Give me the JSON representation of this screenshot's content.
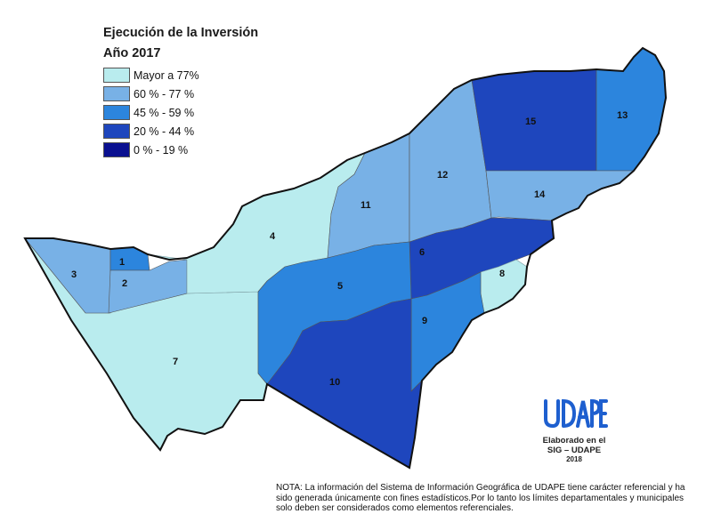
{
  "title_line1": "Ejecución de la Inversión",
  "title_line2": "Año 2017",
  "legend": [
    {
      "label": "Mayor a 77%",
      "color": "#b9ecee"
    },
    {
      "label": "60 % - 77 %",
      "color": "#78b1e6"
    },
    {
      "label": "45 % - 59 %",
      "color": "#2c85dd"
    },
    {
      "label": "20 % - 44 %",
      "color": "#1e46bd"
    },
    {
      "label": "0 % - 19 %",
      "color": "#0a1090"
    }
  ],
  "regions": [
    {
      "id": "1",
      "class": "45 % - 59 %"
    },
    {
      "id": "2",
      "class": "60 % - 77 %"
    },
    {
      "id": "3",
      "class": "60 % - 77 %"
    },
    {
      "id": "4",
      "class": "Mayor a 77%"
    },
    {
      "id": "5",
      "class": "45 % - 59 %"
    },
    {
      "id": "6",
      "class": "20 % - 44 %"
    },
    {
      "id": "7",
      "class": "Mayor a 77%"
    },
    {
      "id": "8",
      "class": "Mayor a 77%"
    },
    {
      "id": "9",
      "class": "45 % - 59 %"
    },
    {
      "id": "10",
      "class": "20 % - 44 %"
    },
    {
      "id": "11",
      "class": "60 % - 77 %"
    },
    {
      "id": "12",
      "class": "60 % - 77 %"
    },
    {
      "id": "13",
      "class": "45 % - 59 %"
    },
    {
      "id": "14",
      "class": "60 % - 77 %"
    },
    {
      "id": "15",
      "class": "20 % - 44 %"
    }
  ],
  "logo": {
    "name": "UDAPE",
    "line1": "Elaborado en el",
    "line2": "SIG – UDAPE",
    "year": "2018"
  },
  "note": "NOTA: La información del Sistema de Información Geográfica de UDAPE tiene carácter referencial y ha sido generada únicamente con fines estadísticos.Por lo tanto los límites departamentales y municipales solo deben ser considerados como elementos referenciales."
}
